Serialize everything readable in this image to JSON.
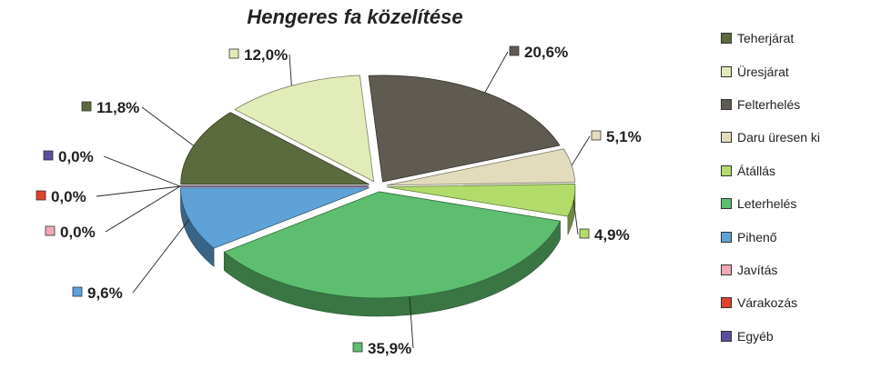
{
  "chart_data": {
    "type": "pie",
    "title": "Hengeres fa közelítése",
    "legend_position": "right",
    "slices": [
      {
        "name": "Teherjárat",
        "value": 11.8,
        "label": "11,8%",
        "color": "#5b6b3e"
      },
      {
        "name": "Üresjárat",
        "value": 12.0,
        "label": "12,0%",
        "color": "#e2ecb8"
      },
      {
        "name": "Felterhelés",
        "value": 20.6,
        "label": "20,6%",
        "color": "#5f5b51"
      },
      {
        "name": "Daru üresen ki",
        "value": 5.1,
        "label": "5,1%",
        "color": "#e3dcbc"
      },
      {
        "name": "Átállás",
        "value": 4.9,
        "label": "4,9%",
        "color": "#b2dc6a"
      },
      {
        "name": "Leterhelés",
        "value": 35.9,
        "label": "35,9%",
        "color": "#5cbe6e"
      },
      {
        "name": "Pihenő",
        "value": 9.6,
        "label": "9,6%",
        "color": "#5ea2d8"
      },
      {
        "name": "Javítás",
        "value": 0.0,
        "label": "0,0%",
        "color": "#f0a8b4"
      },
      {
        "name": "Várakozás",
        "value": 0.0,
        "label": "0,0%",
        "color": "#e0422c"
      },
      {
        "name": "Egyéb",
        "value": 0.0,
        "label": "0,0%",
        "color": "#5b4e9e"
      }
    ]
  }
}
